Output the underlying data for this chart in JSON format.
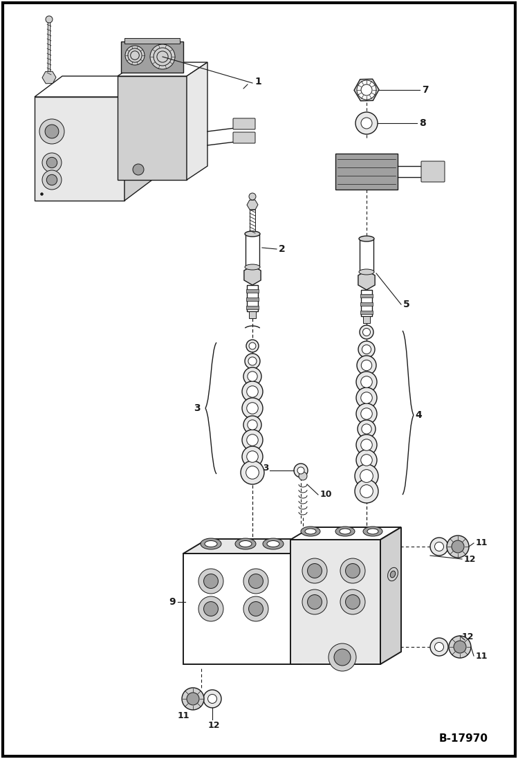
{
  "bg_color": "#ffffff",
  "line_color": "#1a1a1a",
  "fig_label": "B-17970",
  "gray_light": "#e8e8e8",
  "gray_med": "#d0d0d0",
  "gray_dark": "#a0a0a0",
  "gray_shade": "#b8b8b8"
}
